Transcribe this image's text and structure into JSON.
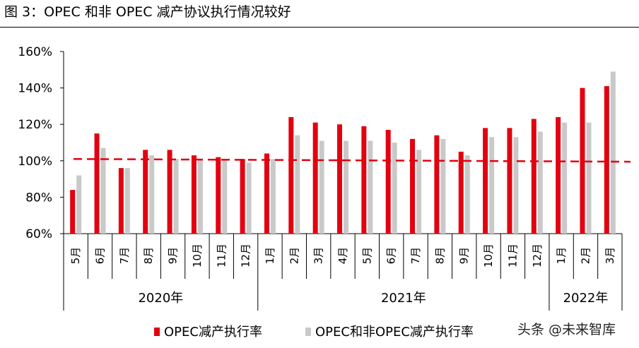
{
  "figure_title": "图 3：OPEC 和非 OPEC 减产协议执行情况较好",
  "watermark": "头条 @未来智库",
  "colors": {
    "opec": "#E3000F",
    "non_opec": "#C9C9C9",
    "reference_line": "#E3000F"
  },
  "chart_data": {
    "type": "bar",
    "categories": [
      "5月",
      "6月",
      "7月",
      "8月",
      "9月",
      "10月",
      "11月",
      "12月",
      "1月",
      "2月",
      "3月",
      "4月",
      "5月",
      "6月",
      "7月",
      "8月",
      "9月",
      "10月",
      "11月",
      "12月",
      "1月",
      "2月",
      "3月"
    ],
    "year_groups": [
      {
        "label": "2020年",
        "count": 8
      },
      {
        "label": "2021年",
        "count": 12
      },
      {
        "label": "2022年",
        "count": 3
      }
    ],
    "series": [
      {
        "name": "OPEC减产执行率",
        "values": [
          84,
          115,
          96,
          106,
          106,
          103,
          102,
          101,
          104,
          124,
          121,
          120,
          119,
          117,
          112,
          114,
          105,
          118,
          118,
          123,
          124,
          140,
          141
        ]
      },
      {
        "name": "OPEC和非OPEC减产执行率",
        "values": [
          92,
          107,
          96,
          103,
          101,
          101,
          101,
          99,
          101,
          114,
          111,
          111,
          111,
          110,
          106,
          112,
          103,
          113,
          113,
          116,
          121,
          121,
          149
        ]
      }
    ],
    "reference_line": {
      "from": 101,
      "to": 99.5
    },
    "ylim": [
      60,
      160
    ],
    "yticks": [
      "60%",
      "80%",
      "100%",
      "120%",
      "140%",
      "160%"
    ],
    "ytick_values": [
      60,
      80,
      100,
      120,
      140,
      160
    ],
    "legend": "bottom"
  }
}
